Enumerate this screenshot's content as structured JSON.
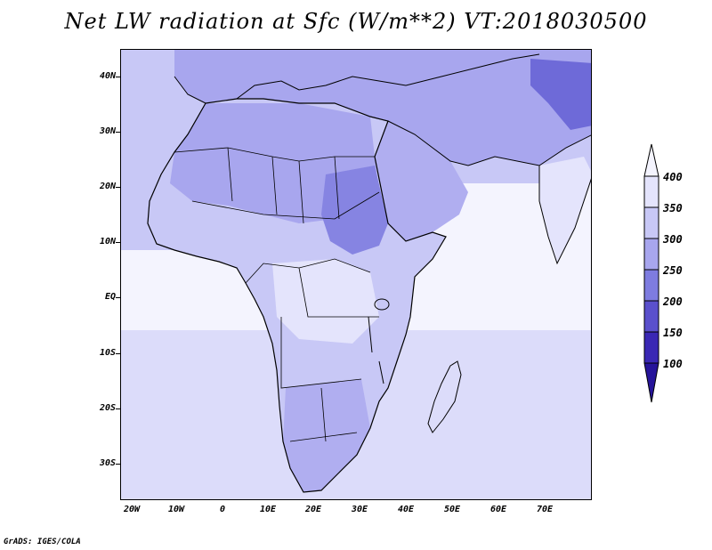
{
  "title": "Net LW radiation at Sfc (W/m**2) VT:2018030500",
  "footer": "GrADS: IGES/COLA",
  "latitude_labels": [
    "40N",
    "30N",
    "20N",
    "10N",
    "EQ",
    "10S",
    "20S",
    "30S"
  ],
  "longitude_labels": [
    "20W",
    "10W",
    "0",
    "10E",
    "20E",
    "30E",
    "40E",
    "50E",
    "60E",
    "70E"
  ],
  "colorbar": {
    "labels": [
      "400",
      "350",
      "300",
      "250",
      "200",
      "150",
      "100"
    ],
    "colors": {
      "gt400": "#f4f4fe",
      "350-400": "#e4e4fc",
      "300-350": "#c8c8f6",
      "250-300": "#a8a6ee",
      "200-250": "#7e7ce0",
      "150-200": "#5a50cc",
      "100-150": "#3a28b4",
      "lt100": "#26149a"
    }
  },
  "colors": {
    "land_lw": "#b0aef0",
    "land_mid": "#9c9aea",
    "land_dark": "#8684e2",
    "land_darkest": "#6e6ad8",
    "ocean_light": "#f4f4fe",
    "ocean_mid": "#dcdcfa",
    "border": "#000000"
  }
}
